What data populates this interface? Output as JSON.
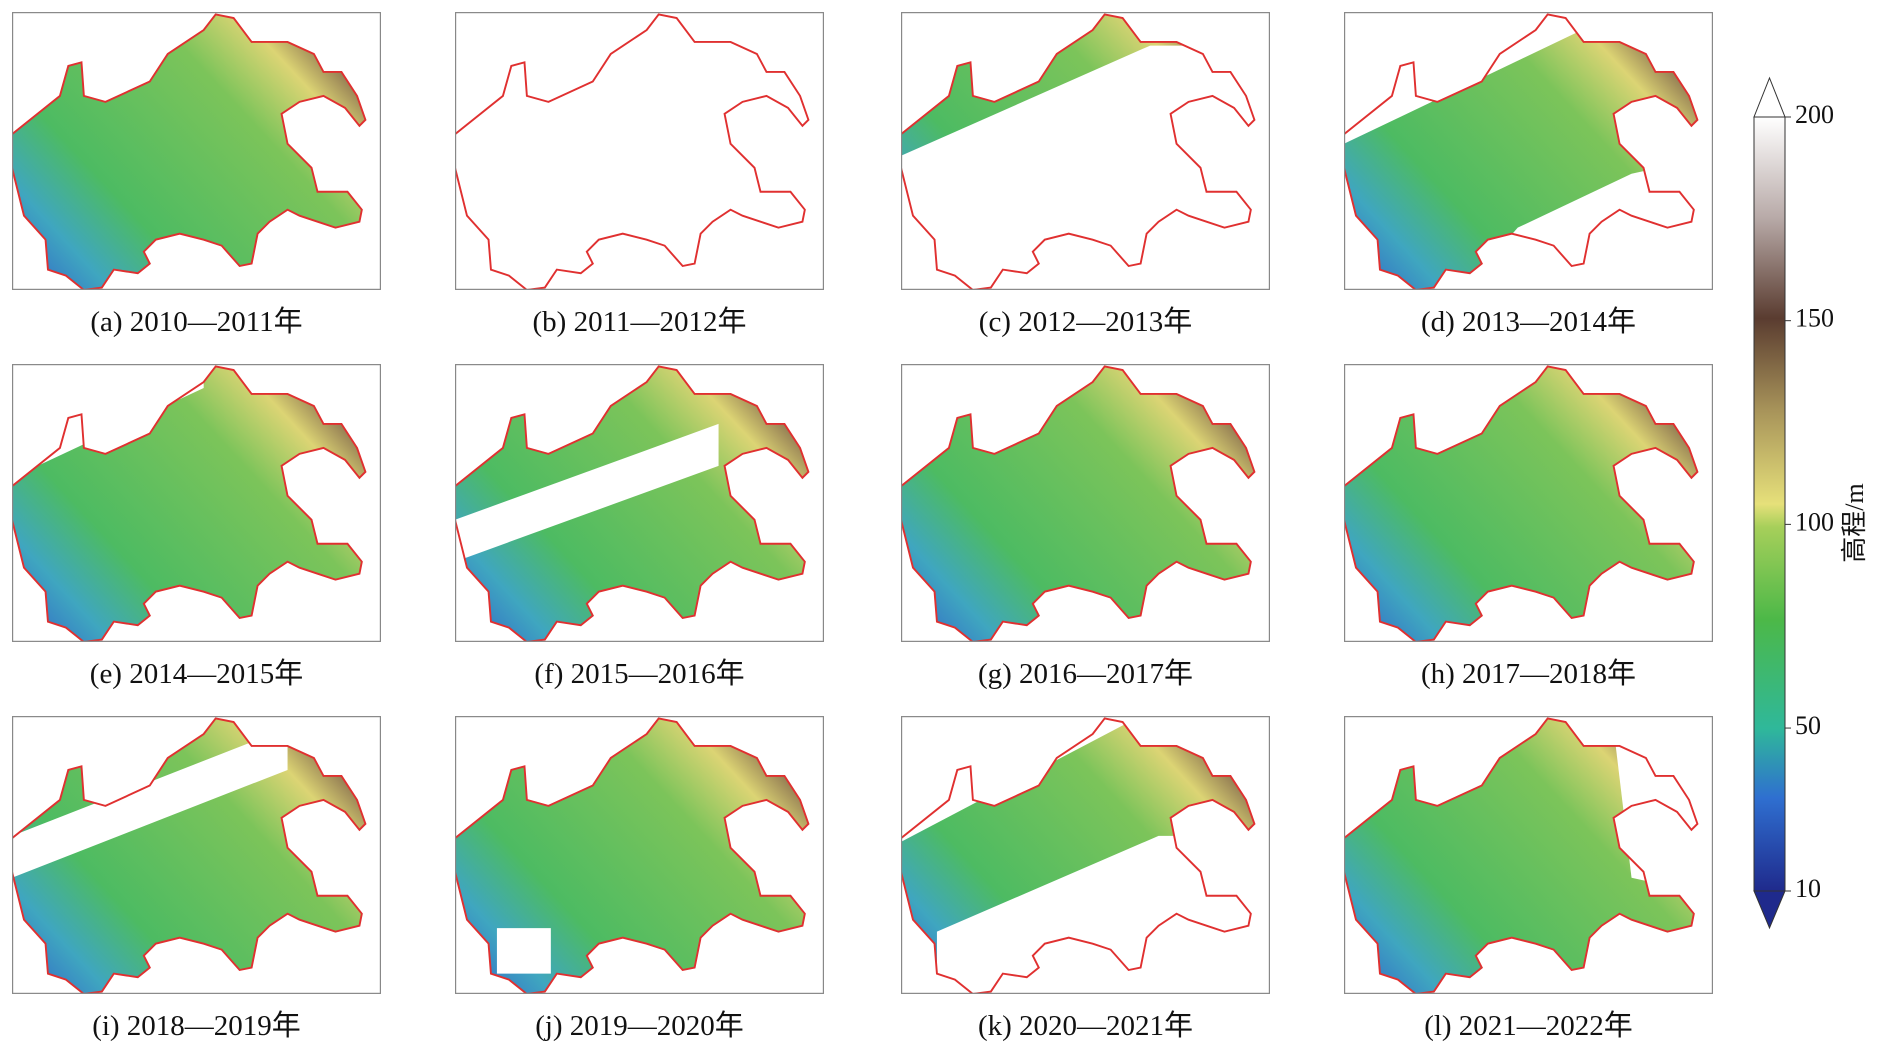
{
  "panels": [
    {
      "caption": "(a) 2010—2011年"
    },
    {
      "caption": "(b) 2011—2012年"
    },
    {
      "caption": "(c) 2012—2013年"
    },
    {
      "caption": "(d) 2013—2014年"
    },
    {
      "caption": "(e) 2014—2015年"
    },
    {
      "caption": "(f) 2015—2016年"
    },
    {
      "caption": "(g) 2016—2017年"
    },
    {
      "caption": "(h) 2017—2018年"
    },
    {
      "caption": "(i) 2018—2019年"
    },
    {
      "caption": "(j) 2019—2020年"
    },
    {
      "caption": "(k) 2020—2021年"
    },
    {
      "caption": "(l) 2021—2022年"
    }
  ],
  "colorbar": {
    "label": "高程/m",
    "lim": [
      10,
      200
    ],
    "ticks": [
      10,
      50,
      100,
      150,
      200
    ]
  }
}
